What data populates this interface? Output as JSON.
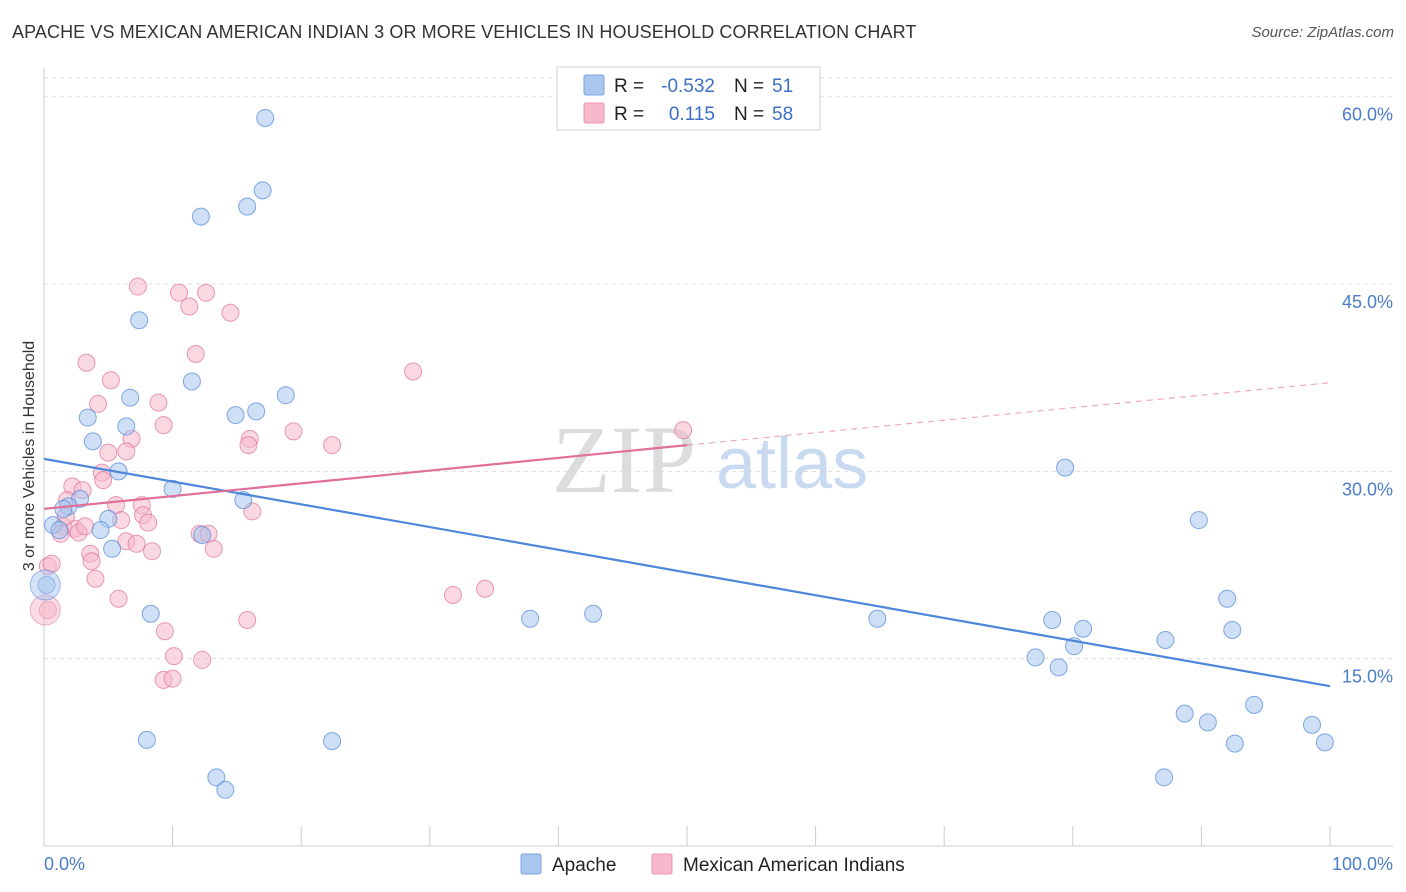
{
  "title": "APACHE VS MEXICAN AMERICAN INDIAN 3 OR MORE VEHICLES IN HOUSEHOLD CORRELATION CHART",
  "source": "Source: ZipAtlas.com",
  "watermark": {
    "zip": "ZIP",
    "atlas": "atlas"
  },
  "legend_top": [
    {
      "r_label": "R =",
      "r_value": "-0.532",
      "n_label": "N =",
      "n_value": "51",
      "color": "#a8c6ee"
    },
    {
      "r_label": "R =",
      "r_value": "0.115",
      "n_label": "N =",
      "n_value": "58",
      "color": "#f6b8cb"
    }
  ],
  "legend_bottom": [
    {
      "label": "Apache",
      "color": "#a8c6ee"
    },
    {
      "label": "Mexican American Indians",
      "color": "#f6b8cb"
    }
  ],
  "chart_data": {
    "type": "scatter",
    "title": "APACHE VS MEXICAN AMERICAN INDIAN 3 OR MORE VEHICLES IN HOUSEHOLD CORRELATION CHART",
    "xlabel": "",
    "ylabel": "3 or more Vehicles in Household",
    "xlim": [
      0,
      100
    ],
    "ylim": [
      0,
      61.5
    ],
    "x_tick_labels": [
      "0.0%",
      "100.0%"
    ],
    "y_ticks": [
      15,
      30,
      45,
      60
    ],
    "y_tick_labels": [
      "15.0%",
      "30.0%",
      "45.0%",
      "60.0%"
    ],
    "grid": true,
    "legend_position": "top-center",
    "series": [
      {
        "name": "Apache",
        "color": "#4f86d9",
        "fill": "#a8c6ee",
        "trend": {
          "x": [
            0,
            100
          ],
          "y": [
            31.0,
            12.8
          ],
          "dashed_from": null
        },
        "points": [
          [
            17.2,
            58.3
          ],
          [
            17.0,
            52.5
          ],
          [
            12.2,
            50.4
          ],
          [
            15.8,
            51.2
          ],
          [
            7.4,
            42.1
          ],
          [
            11.5,
            37.2
          ],
          [
            6.7,
            35.9
          ],
          [
            18.8,
            36.1
          ],
          [
            3.4,
            34.3
          ],
          [
            14.9,
            34.5
          ],
          [
            16.5,
            34.8
          ],
          [
            6.4,
            33.6
          ],
          [
            3.8,
            32.4
          ],
          [
            5.8,
            30.0
          ],
          [
            10.0,
            28.6
          ],
          [
            15.5,
            27.7
          ],
          [
            2.8,
            27.8
          ],
          [
            1.9,
            27.2
          ],
          [
            1.5,
            27.0
          ],
          [
            5.0,
            26.2
          ],
          [
            0.7,
            25.7
          ],
          [
            1.2,
            25.3
          ],
          [
            4.4,
            25.3
          ],
          [
            12.3,
            24.9
          ],
          [
            5.3,
            23.8
          ],
          [
            0.2,
            20.9
          ],
          [
            8.3,
            18.6
          ],
          [
            37.8,
            18.2
          ],
          [
            42.7,
            18.6
          ],
          [
            64.8,
            18.2
          ],
          [
            79.4,
            30.3
          ],
          [
            89.8,
            26.1
          ],
          [
            78.4,
            18.1
          ],
          [
            80.8,
            17.4
          ],
          [
            80.1,
            16.0
          ],
          [
            87.2,
            16.5
          ],
          [
            92.0,
            19.8
          ],
          [
            92.4,
            17.3
          ],
          [
            77.1,
            15.1
          ],
          [
            78.9,
            14.3
          ],
          [
            94.1,
            11.3
          ],
          [
            88.7,
            10.6
          ],
          [
            90.5,
            9.9
          ],
          [
            98.6,
            9.7
          ],
          [
            8.0,
            8.5
          ],
          [
            22.4,
            8.4
          ],
          [
            92.6,
            8.2
          ],
          [
            99.6,
            8.3
          ],
          [
            13.4,
            5.5
          ],
          [
            14.1,
            4.5
          ],
          [
            87.1,
            5.5
          ]
        ]
      },
      {
        "name": "Mexican American Indians",
        "color": "#e0709a",
        "fill": "#f6b8cb",
        "trend": {
          "x": [
            0,
            50,
            100
          ],
          "y": [
            27.0,
            32.1,
            37.1
          ],
          "dashed_from": 50
        },
        "points": [
          [
            7.3,
            44.8
          ],
          [
            10.5,
            44.3
          ],
          [
            11.3,
            43.2
          ],
          [
            12.6,
            44.3
          ],
          [
            14.5,
            42.7
          ],
          [
            11.8,
            39.4
          ],
          [
            3.3,
            38.7
          ],
          [
            28.7,
            38.0
          ],
          [
            5.2,
            37.3
          ],
          [
            4.2,
            35.4
          ],
          [
            8.9,
            35.5
          ],
          [
            9.3,
            33.7
          ],
          [
            19.4,
            33.2
          ],
          [
            6.8,
            32.6
          ],
          [
            16.0,
            32.6
          ],
          [
            15.9,
            32.1
          ],
          [
            22.4,
            32.1
          ],
          [
            6.4,
            31.6
          ],
          [
            5.0,
            31.5
          ],
          [
            49.7,
            33.3
          ],
          [
            4.5,
            29.9
          ],
          [
            4.6,
            29.3
          ],
          [
            2.2,
            28.8
          ],
          [
            3.0,
            28.5
          ],
          [
            1.8,
            27.7
          ],
          [
            7.6,
            27.3
          ],
          [
            5.6,
            27.3
          ],
          [
            16.2,
            26.8
          ],
          [
            7.7,
            26.5
          ],
          [
            6.0,
            26.1
          ],
          [
            8.1,
            25.9
          ],
          [
            1.5,
            25.6
          ],
          [
            2.4,
            25.4
          ],
          [
            2.7,
            25.1
          ],
          [
            1.3,
            25.0
          ],
          [
            12.1,
            25.0
          ],
          [
            12.8,
            25.0
          ],
          [
            6.4,
            24.4
          ],
          [
            7.2,
            24.2
          ],
          [
            13.2,
            23.8
          ],
          [
            8.4,
            23.6
          ],
          [
            3.6,
            23.4
          ],
          [
            3.7,
            22.8
          ],
          [
            0.3,
            22.4
          ],
          [
            0.6,
            22.6
          ],
          [
            4.0,
            21.4
          ],
          [
            34.3,
            20.6
          ],
          [
            31.8,
            20.1
          ],
          [
            5.8,
            19.8
          ],
          [
            0.3,
            18.9
          ],
          [
            15.8,
            18.1
          ],
          [
            9.4,
            17.2
          ],
          [
            10.1,
            15.2
          ],
          [
            12.3,
            14.9
          ],
          [
            9.3,
            13.3
          ],
          [
            10.0,
            13.4
          ],
          [
            1.7,
            26.4
          ],
          [
            3.2,
            25.6
          ]
        ]
      }
    ]
  }
}
